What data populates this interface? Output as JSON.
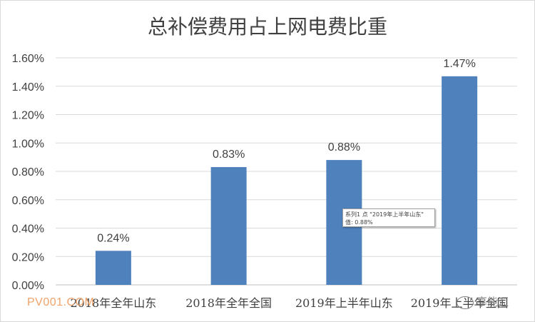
{
  "chart_data": {
    "type": "bar",
    "title": "总补偿费用占上网电费比重",
    "categories": [
      "2018年全年山东",
      "2018年全年全国",
      "2019年上半年山东",
      "2019年上半年全国"
    ],
    "values": [
      0.24,
      0.83,
      0.88,
      1.47
    ],
    "value_labels": [
      "0.24%",
      "0.83%",
      "0.88%",
      "1.47%"
    ],
    "yticks": [
      "0.00%",
      "0.20%",
      "0.40%",
      "0.60%",
      "0.80%",
      "1.00%",
      "1.20%",
      "1.40%",
      "1.60%"
    ],
    "ylim": [
      0,
      1.6
    ],
    "grid": true,
    "legend": "none",
    "bar_color": "#4f81bd"
  },
  "tooltip": {
    "line1": "系列1 点 \"2019年上半年山东\"",
    "line2": "值: 0.88%"
  },
  "watermark": {
    "id_text": "PV001.COM",
    "brand_text": "享能汇"
  }
}
